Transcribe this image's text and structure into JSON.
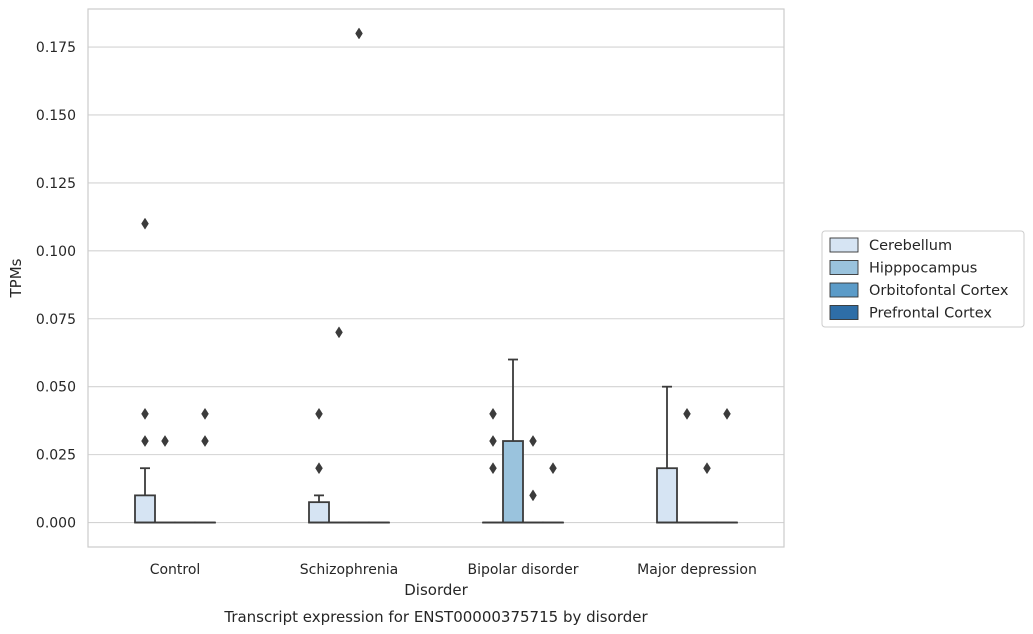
{
  "chart_data": {
    "type": "box",
    "title": "",
    "xlabel": "Disorder",
    "ylabel": "TPMs",
    "caption": "Transcript expression for ENST00000375715 by disorder",
    "categories": [
      "Control",
      "Schizophrenia",
      "Bipolar disorder",
      "Major depression"
    ],
    "ylim": [
      -0.009,
      0.189
    ],
    "yticks": [
      "0.000",
      "0.025",
      "0.050",
      "0.075",
      "0.100",
      "0.125",
      "0.150",
      "0.175"
    ],
    "grid": true,
    "legend_position": "right",
    "series": [
      {
        "name": "Cerebellum",
        "color": "#d6e4f3",
        "boxes": [
          {
            "q1": 0,
            "median": 0,
            "q3": 0.01,
            "whisker_low": 0,
            "whisker_high": 0.02,
            "outliers": [
              0.03,
              0.04,
              0.11
            ]
          },
          {
            "q1": 0,
            "median": 0,
            "q3": 0.0075,
            "whisker_low": 0,
            "whisker_high": 0.01,
            "outliers": [
              0.02,
              0.04
            ]
          },
          {
            "q1": 0,
            "median": 0,
            "q3": 0,
            "whisker_low": 0,
            "whisker_high": 0,
            "outliers": [
              0.02,
              0.03,
              0.04
            ]
          },
          {
            "q1": 0,
            "median": 0,
            "q3": 0.02,
            "whisker_low": 0,
            "whisker_high": 0.05,
            "outliers": []
          }
        ]
      },
      {
        "name": "Hipppocampus",
        "color": "#9ac3dd",
        "boxes": [
          {
            "q1": 0,
            "median": 0,
            "q3": 0,
            "whisker_low": 0,
            "whisker_high": 0,
            "outliers": [
              0.03
            ]
          },
          {
            "q1": 0,
            "median": 0,
            "q3": 0,
            "whisker_low": 0,
            "whisker_high": 0,
            "outliers": [
              0.07
            ]
          },
          {
            "q1": 0,
            "median": 0,
            "q3": 0.03,
            "whisker_low": 0,
            "whisker_high": 0.06,
            "outliers": []
          },
          {
            "q1": 0,
            "median": 0,
            "q3": 0,
            "whisker_low": 0,
            "whisker_high": 0,
            "outliers": [
              0.04
            ]
          }
        ]
      },
      {
        "name": "Orbitofontal Cortex",
        "color": "#5b9bc8",
        "boxes": [
          {
            "q1": 0,
            "median": 0,
            "q3": 0,
            "whisker_low": 0,
            "whisker_high": 0,
            "outliers": []
          },
          {
            "q1": 0,
            "median": 0,
            "q3": 0,
            "whisker_low": 0,
            "whisker_high": 0,
            "outliers": [
              0.18
            ]
          },
          {
            "q1": 0,
            "median": 0,
            "q3": 0,
            "whisker_low": 0,
            "whisker_high": 0,
            "outliers": [
              0.01,
              0.03
            ]
          },
          {
            "q1": 0,
            "median": 0,
            "q3": 0,
            "whisker_low": 0,
            "whisker_high": 0,
            "outliers": [
              0.02
            ]
          }
        ]
      },
      {
        "name": "Prefrontal Cortex",
        "color": "#2e6ea7",
        "boxes": [
          {
            "q1": 0,
            "median": 0,
            "q3": 0,
            "whisker_low": 0,
            "whisker_high": 0,
            "outliers": [
              0.03,
              0.04
            ]
          },
          {
            "q1": 0,
            "median": 0,
            "q3": 0,
            "whisker_low": 0,
            "whisker_high": 0,
            "outliers": []
          },
          {
            "q1": 0,
            "median": 0,
            "q3": 0,
            "whisker_low": 0,
            "whisker_high": 0,
            "outliers": [
              0.02
            ]
          },
          {
            "q1": 0,
            "median": 0,
            "q3": 0,
            "whisker_low": 0,
            "whisker_high": 0,
            "outliers": [
              0.04
            ]
          }
        ]
      }
    ]
  }
}
